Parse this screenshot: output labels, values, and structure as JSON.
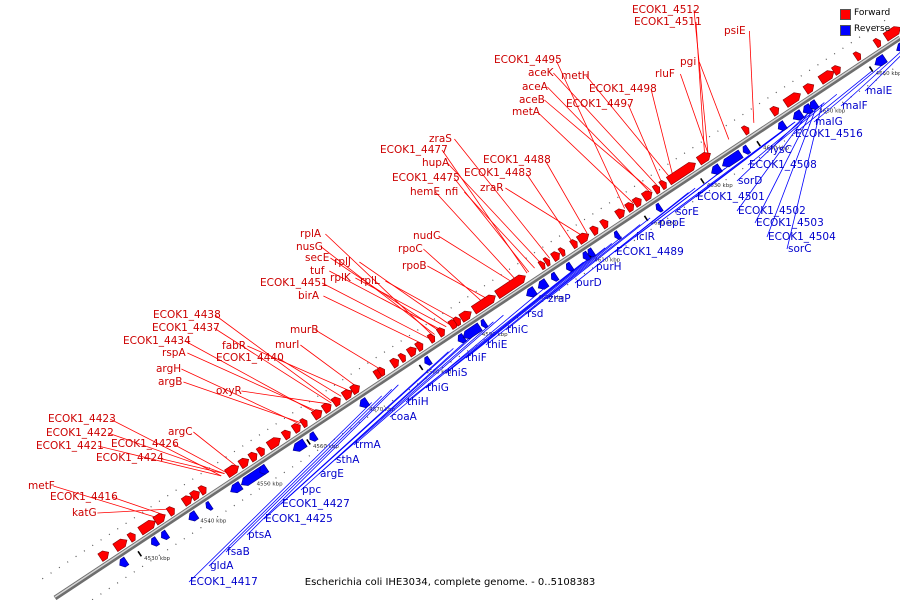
{
  "caption": "Escherichia coli IHE3034, complete genome. - 0..5108383",
  "colors": {
    "forward": "#ff0000",
    "reverse": "#0000ff",
    "backbone": "#8c8c8c"
  },
  "legend": {
    "forward": "Forward",
    "reverse": "Reverse"
  },
  "ticks": [
    {
      "label": "4530 kbp"
    },
    {
      "label": "4540 kbp"
    },
    {
      "label": "4550 kbp"
    },
    {
      "label": "4560 kbp"
    },
    {
      "label": "4570 kbp"
    },
    {
      "label": "4580 kbp"
    },
    {
      "label": "4590 kbp"
    },
    {
      "label": "4600 kbp"
    },
    {
      "label": "4610 kbp"
    },
    {
      "label": "4620 kbp"
    },
    {
      "label": "4630 kbp"
    },
    {
      "label": "4640 kbp"
    },
    {
      "label": "4650 kbp"
    },
    {
      "label": "4660 kbp"
    }
  ],
  "forward_labels": [
    "ECOK1_4512",
    "ECOK1_4511",
    "psiE",
    "pgi",
    "rluF",
    "ECOK1_4495",
    "aceK",
    "metH",
    "aceA",
    "aceB",
    "ECOK1_4498",
    "ECOK1_4497",
    "metA",
    "zraS",
    "ECOK1_4477",
    "hupA",
    "ECOK1_4488",
    "ECOK1_4475",
    "ECOK1_4483",
    "zraR",
    "hemE",
    "nfi",
    "nudC",
    "rplA",
    "rpoC",
    "nusG",
    "rplJ",
    "secE",
    "rpoB",
    "tuf",
    "rplK",
    "rplL",
    "ECOK1_4451",
    "birA",
    "ECOK1_4438",
    "murB",
    "ECOK1_4437",
    "fabR",
    "ECOK1_4434",
    "murI",
    "rspA",
    "ECOK1_4440",
    "argH",
    "oxyR",
    "argB",
    "ECOK1_4423",
    "ECOK1_4422",
    "argC",
    "ECOK1_4426",
    "ECOK1_4421",
    "ECOK1_4424",
    "metF",
    "ECOK1_4416",
    "katG"
  ],
  "reverse_labels": [
    "malE",
    "malF",
    "malG",
    "ECOK1_4516",
    "lysC",
    "ECOK1_4508",
    "sorD",
    "ECOK1_4501",
    "pepE",
    "sorE",
    "ECOK1_4502",
    "ECOK1_4503",
    "ECOK1_4504",
    "sorC",
    "iclR",
    "ECOK1_4489",
    "purH",
    "purD",
    "zraP",
    "rsd",
    "thiC",
    "thiE",
    "thiF",
    "thiS",
    "thiG",
    "thiH",
    "coaA",
    "trmA",
    "sthA",
    "argE",
    "ppc",
    "ECOK1_4427",
    "ECOK1_4425",
    "ptsA",
    "fsaB",
    "gldA",
    "ECOK1_4417"
  ]
}
